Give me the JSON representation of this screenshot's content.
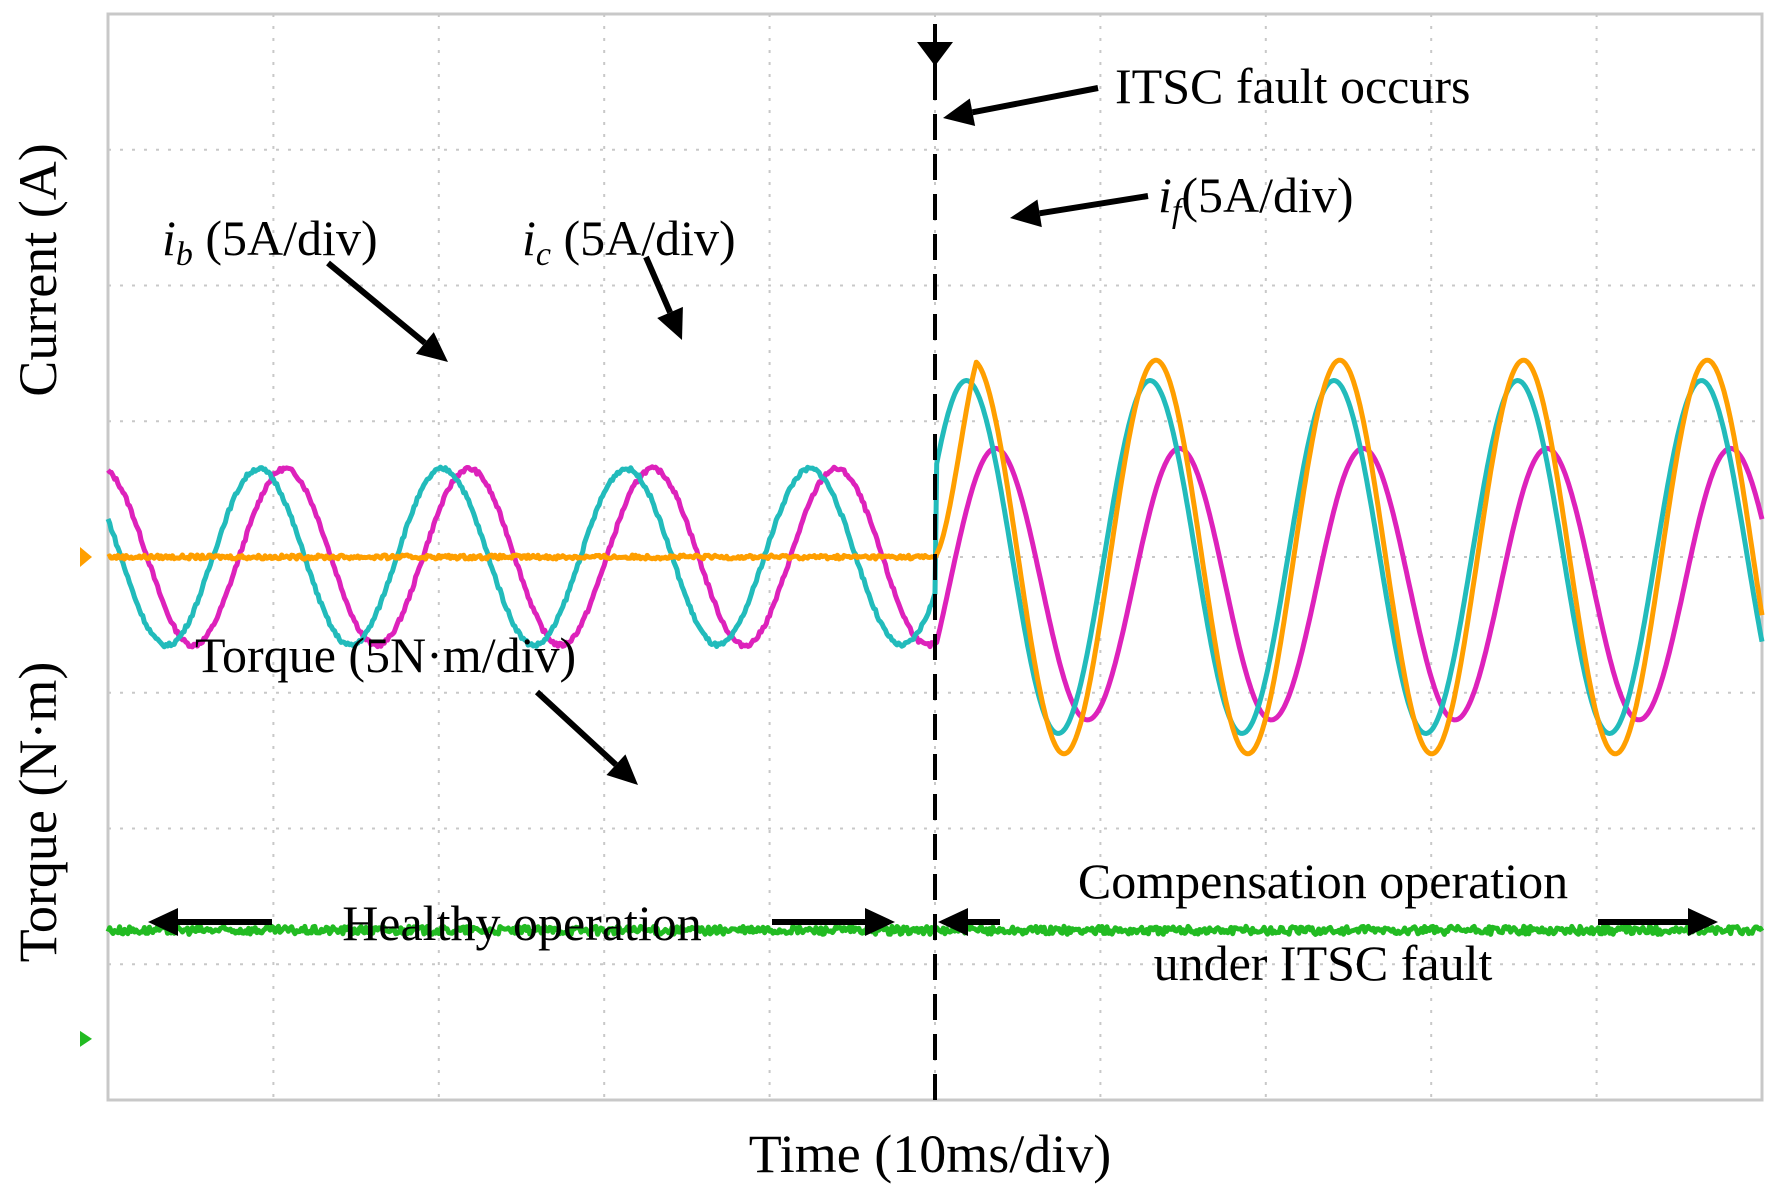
{
  "chart_data": {
    "type": "line",
    "time_label": "Time (10ms/div)",
    "current_label": "Current (A)",
    "torque_label": "Torque (N·m)",
    "divisions": {
      "x": 10,
      "y": 8
    },
    "fault_time_div": 5.0,
    "series": [
      {
        "name": "i_b",
        "label_var": "i",
        "label_sub": "b",
        "label_rest": " (5A/div)",
        "color": "#dd22bb",
        "healthy": {
          "amplitude_div": 0.65,
          "frequency_cycles_per_div": 0.9,
          "phase_rad": 1.8
        },
        "faulty": {
          "amplitude_div": 1.0,
          "offset_div": -0.2,
          "frequency_cycles_per_div": 0.9,
          "phase_rad": -0.5
        }
      },
      {
        "name": "i_c",
        "label_var": "i",
        "label_sub": "c",
        "label_rest": " (5A/div)",
        "color": "#22bbbb",
        "healthy": {
          "amplitude_div": 0.65,
          "frequency_cycles_per_div": 0.9,
          "phase_rad": 2.7
        },
        "faulty": {
          "amplitude_div": 1.3,
          "offset_div": 0.0,
          "frequency_cycles_per_div": 0.9,
          "phase_rad": 0.5
        }
      },
      {
        "name": "i_f",
        "label_var": "i",
        "label_sub": "f",
        "label_rest": "(5A/div)",
        "color": "#ff9f00",
        "healthy": {
          "amplitude_div": 0.0,
          "level_div": 0.0
        },
        "faulty": {
          "amplitude_div": 1.45,
          "offset_div": 0.0,
          "frequency_cycles_per_div": 0.9,
          "phase_rad": 0.3
        }
      },
      {
        "name": "Torque",
        "label_text": "Torque (5N·m/div)",
        "color": "#22bb22",
        "level_div": -2.75,
        "noise_div": 0.03
      }
    ],
    "annotations": {
      "fault": "ITSC fault occurs",
      "healthy": "Healthy operation",
      "compensation_line1": "Compensation operation",
      "compensation_line2": "under ITSC fault"
    }
  }
}
